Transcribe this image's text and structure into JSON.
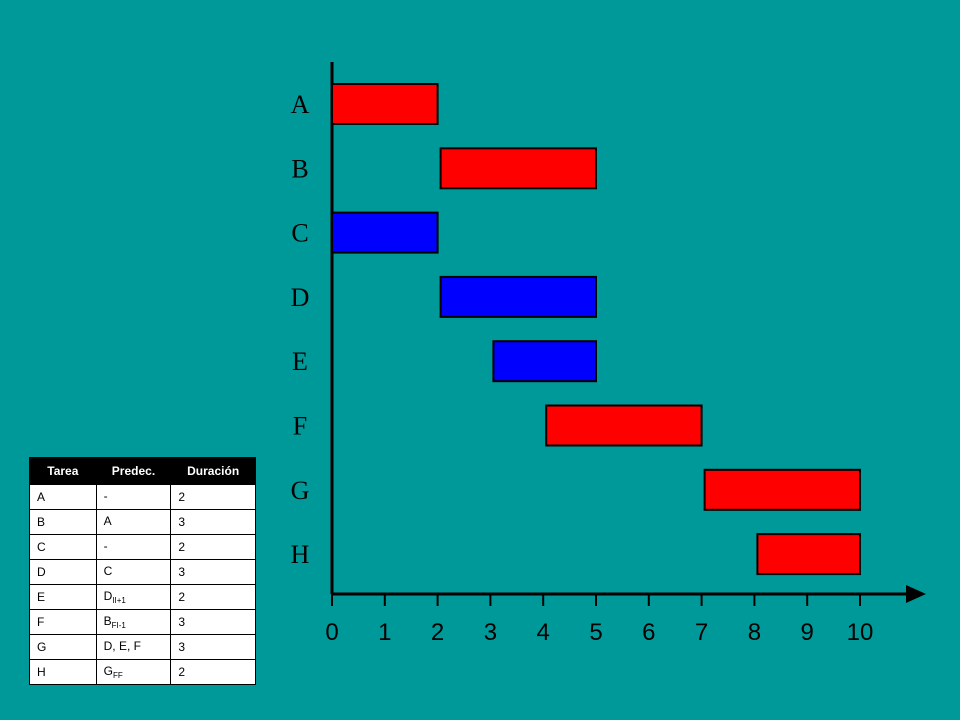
{
  "colors": {
    "background": "#009999",
    "critical": "#ff0000",
    "non_critical": "#0000ff",
    "stroke": "#000000"
  },
  "chart_data": {
    "type": "gantt",
    "xlim": [
      0,
      10
    ],
    "x_ticks": [
      0,
      1,
      2,
      3,
      4,
      5,
      6,
      7,
      8,
      9,
      10
    ],
    "tasks": [
      {
        "name": "A",
        "start": 0,
        "end": 2,
        "color": "#ff0000"
      },
      {
        "name": "B",
        "start": 2,
        "end": 5,
        "color": "#ff0000"
      },
      {
        "name": "C",
        "start": 0,
        "end": 2,
        "color": "#0000ff"
      },
      {
        "name": "D",
        "start": 2,
        "end": 5,
        "color": "#0000ff"
      },
      {
        "name": "E",
        "start": 3,
        "end": 5,
        "color": "#0000ff"
      },
      {
        "name": "F",
        "start": 4,
        "end": 7,
        "color": "#ff0000"
      },
      {
        "name": "G",
        "start": 7,
        "end": 10,
        "color": "#ff0000"
      },
      {
        "name": "H",
        "start": 8,
        "end": 10,
        "color": "#ff0000"
      }
    ]
  },
  "table": {
    "headers": [
      "Tarea",
      "Predec.",
      "Duración"
    ],
    "rows": [
      {
        "tarea": "A",
        "pred": "-",
        "pred_sub": "",
        "dur": "2"
      },
      {
        "tarea": "B",
        "pred": "A",
        "pred_sub": "",
        "dur": "3"
      },
      {
        "tarea": "C",
        "pred": "-",
        "pred_sub": "",
        "dur": "2"
      },
      {
        "tarea": "D",
        "pred": "C",
        "pred_sub": "",
        "dur": "3"
      },
      {
        "tarea": "E",
        "pred": "D",
        "pred_sub": "II+1",
        "dur": "2"
      },
      {
        "tarea": "F",
        "pred": "B",
        "pred_sub": "FI-1",
        "dur": "3"
      },
      {
        "tarea": "G",
        "pred": "D, E, F",
        "pred_sub": "",
        "dur": "3"
      },
      {
        "tarea": "H",
        "pred": "G",
        "pred_sub": "FF",
        "dur": "2"
      }
    ]
  }
}
